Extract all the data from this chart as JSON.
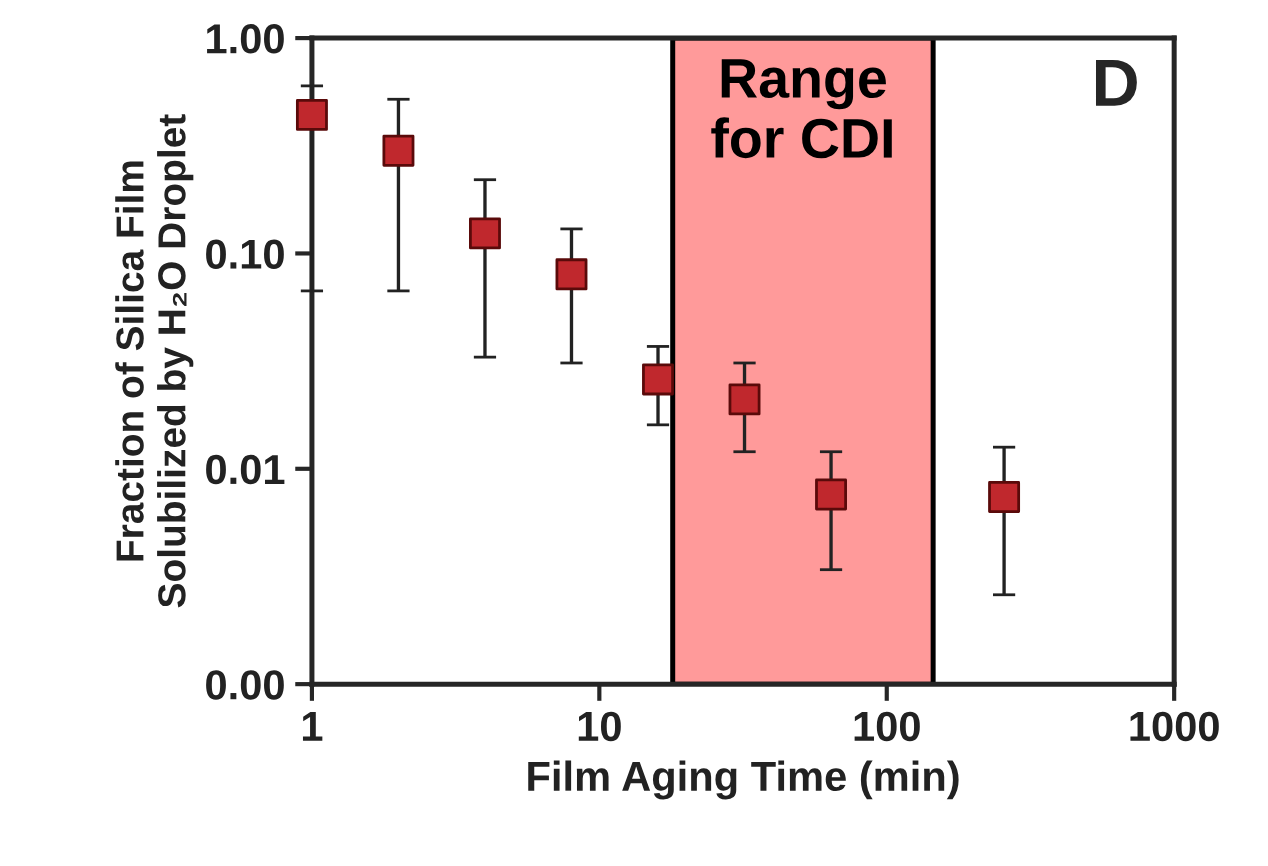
{
  "chart_data": {
    "type": "scatter",
    "xlabel": "Film Aging Time (min)",
    "ylabel": "Fraction of Silica Film\nSolubilized by H₂O Droplet",
    "log": "xy",
    "xlim": [
      1,
      1000
    ],
    "xticks": [
      1,
      10,
      100,
      1000
    ],
    "ylim": [
      0.001,
      1
    ],
    "yticks": [
      {
        "value": 0.001,
        "label": "0.00"
      },
      {
        "value": 0.01,
        "label": "0.01"
      },
      {
        "value": 0.1,
        "label": "0.10"
      },
      {
        "value": 1,
        "label": "1.00"
      }
    ],
    "x": [
      1,
      2,
      4,
      8,
      16,
      32,
      64,
      256
    ],
    "series": [
      {
        "color": "#c0282d",
        "values": [
          0.44,
          0.3,
          0.124,
          0.08,
          0.026,
          0.021,
          0.0076,
          0.0074
        ],
        "errors": [
          [
            0.067,
            0.6
          ],
          [
            0.067,
            0.52
          ],
          [
            0.033,
            0.22
          ],
          [
            0.031,
            0.13
          ],
          [
            0.016,
            0.037
          ],
          [
            0.012,
            0.031
          ],
          [
            0.0034,
            0.012
          ],
          [
            0.0026,
            0.0126
          ]
        ]
      }
    ],
    "marker": "square",
    "bands": [
      {
        "axis": "x",
        "from": 18,
        "to": 145,
        "label": "Range\nfor CDI",
        "color": "#ff9a9a"
      }
    ],
    "annotations": [
      "D"
    ],
    "grid": false
  }
}
